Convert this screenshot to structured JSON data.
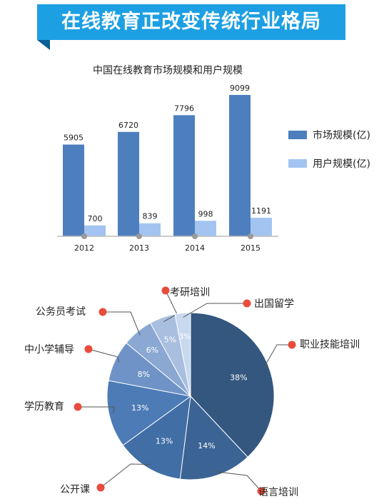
{
  "banner": {
    "title": "在线教育正改变传统行业格局"
  },
  "colors": {
    "banner": "#1d9fe3",
    "market": "#4d7fbe",
    "users": "#a3c4f0",
    "dot": "#e84c3d"
  },
  "chart_data": [
    {
      "type": "bar",
      "title": "中国在线教育市场规模和用户规模",
      "categories": [
        "2012",
        "2013",
        "2014",
        "2015"
      ],
      "series": [
        {
          "name": "市场规模(亿)",
          "values": [
            5905,
            6720,
            7796,
            9099
          ],
          "color": "#4d7fbe"
        },
        {
          "name": "用户规模(亿)",
          "values": [
            700,
            839,
            998,
            1191
          ],
          "color": "#a3c4f0"
        }
      ],
      "legend": "right"
    },
    {
      "type": "pie",
      "slices": [
        {
          "label": "职业技能培训",
          "value": 38,
          "text": "38%",
          "color": "#34577f"
        },
        {
          "label": "语言培训",
          "value": 14,
          "text": "14%",
          "color": "#3b6494"
        },
        {
          "label": "公开课",
          "value": 13,
          "text": "13%",
          "color": "#416ea5"
        },
        {
          "label": "学历教育",
          "value": 13,
          "text": "13%",
          "color": "#4c7bb6"
        },
        {
          "label": "中小学辅导",
          "value": 8,
          "text": "8%",
          "color": "#6f93c6"
        },
        {
          "label": "公务员考试",
          "value": 6,
          "text": "6%",
          "color": "#8aa8d2"
        },
        {
          "label": "考研培训",
          "value": 5,
          "text": "5%",
          "color": "#a9bfe0"
        },
        {
          "label": "出国留学",
          "value": 3,
          "text": "3%",
          "color": "#c8d8ee"
        }
      ]
    }
  ]
}
